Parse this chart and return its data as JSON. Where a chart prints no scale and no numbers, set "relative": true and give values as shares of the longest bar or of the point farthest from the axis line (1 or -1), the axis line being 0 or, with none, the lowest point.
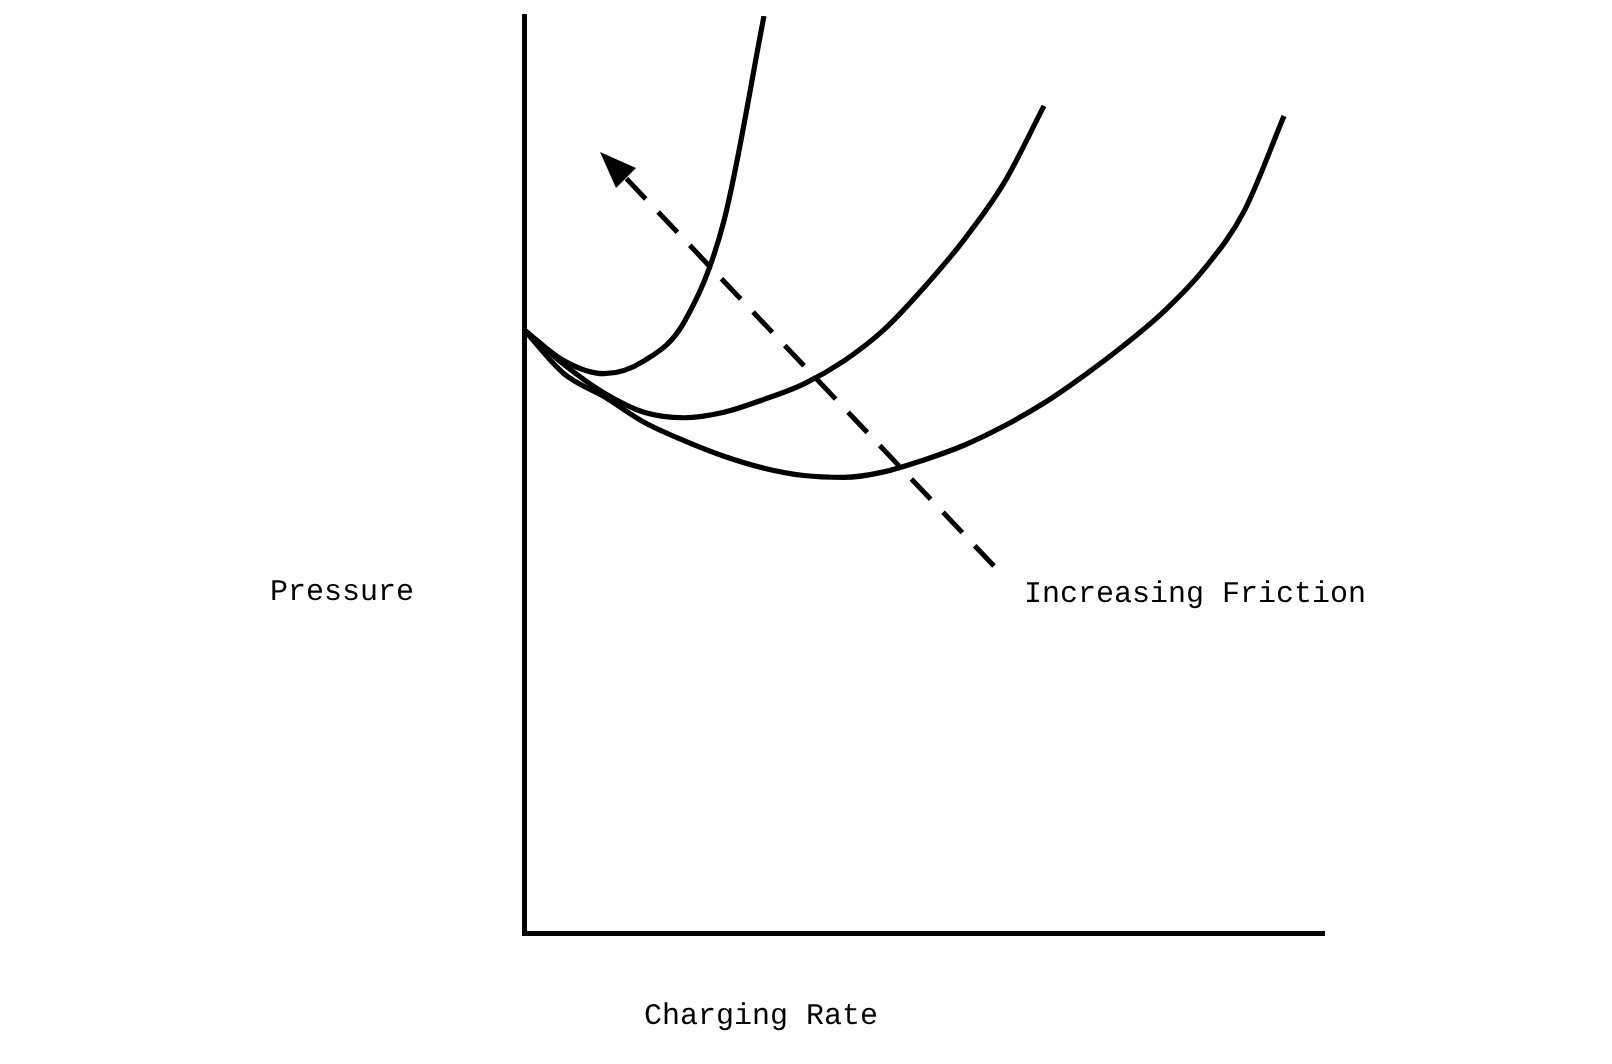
{
  "chart_data": {
    "type": "line",
    "relative": true,
    "xlabel": "Charging Rate",
    "ylabel": "Pressure",
    "grid": false,
    "legend": false,
    "marker": "none",
    "line_style": "solid",
    "categories": [
      null,
      null,
      null,
      null,
      null,
      null,
      null,
      null,
      null,
      null,
      null,
      null,
      null,
      null,
      null,
      null,
      null,
      null,
      null,
      null,
      null
    ],
    "series": [
      {
        "color": "#000000",
        "values": [
          0.658,
          0.624,
          0.61,
          0.624,
          0.666,
          0.777,
          1.0,
          null,
          null,
          null,
          null,
          null,
          null,
          null,
          null,
          null,
          null,
          null,
          null,
          null,
          null
        ]
      },
      {
        "color": "#000000",
        "values": [
          0.658,
          0.62,
          0.589,
          0.568,
          0.562,
          0.568,
          0.582,
          0.599,
          0.624,
          0.658,
          0.704,
          0.756,
          0.818,
          0.902,
          null,
          null,
          null,
          null,
          null,
          null,
          null
        ]
      },
      {
        "color": "#000000",
        "values": [
          0.658,
          0.61,
          0.585,
          0.557,
          0.537,
          0.52,
          0.507,
          0.499,
          0.497,
          0.503,
          0.516,
          0.532,
          0.553,
          0.578,
          0.608,
          0.641,
          0.678,
          0.724,
          0.787,
          0.891,
          null
        ]
      }
    ],
    "annotations": [
      "Increasing Friction"
    ]
  }
}
